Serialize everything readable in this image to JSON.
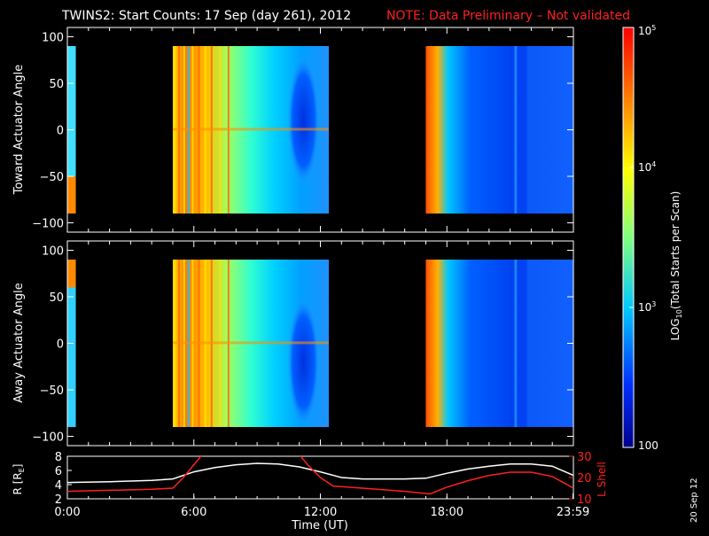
{
  "header": {
    "title": "TWINS2: Start Counts: 17 Sep (day 261), 2012",
    "note": "NOTE: Data Preliminary – Not validated"
  },
  "footer": {
    "date_stamp": "20 Sep 12"
  },
  "colors": {
    "background": "#000000",
    "axes": "#ffffff",
    "note": "#ff2020",
    "lshell": "#ff2020",
    "rtrace": "#ffffff"
  },
  "chart_data": [
    {
      "type": "heatmap",
      "panel": "top",
      "ylabel": "Toward Actuator Angle",
      "ylim": [
        -110,
        110
      ],
      "yticks": [
        100,
        50,
        0,
        -50,
        -100
      ],
      "ytick_labels": [
        "100",
        "50",
        "0",
        "−50",
        "−100"
      ],
      "xlim": [
        0,
        24
      ],
      "data_windows_hours": [
        [
          0.0,
          0.4
        ],
        [
          5.0,
          12.4
        ],
        [
          17.0,
          24.0
        ]
      ],
      "z_scale": "log",
      "zlim": [
        100,
        100000
      ],
      "colormap": [
        "#00008c",
        "#0044ff",
        "#00c8ff",
        "#80ff80",
        "#ffff00",
        "#ff8000",
        "#ff0000"
      ]
    },
    {
      "type": "heatmap",
      "panel": "middle",
      "ylabel": "Away Actuator Angle",
      "ylim": [
        -110,
        110
      ],
      "yticks": [
        100,
        50,
        0,
        -50,
        -100
      ],
      "ytick_labels": [
        "100",
        "50",
        "0",
        "−50",
        "−100"
      ],
      "xlim": [
        0,
        24
      ],
      "data_windows_hours": [
        [
          0.0,
          0.4
        ],
        [
          5.0,
          12.4
        ],
        [
          17.0,
          24.0
        ]
      ],
      "z_scale": "log",
      "zlim": [
        100,
        100000
      ]
    },
    {
      "type": "line",
      "panel": "bottom",
      "xlabel": "Time (UT)",
      "xlim": [
        0,
        24
      ],
      "xticks": [
        0,
        6,
        12,
        18,
        23.98
      ],
      "xtick_labels": [
        "0:00",
        "6:00",
        "12:00",
        "18:00",
        "23:59"
      ],
      "ylabel_left": "R [R",
      "ylabel_left_sub": "E",
      "ylabel_left_close": "]",
      "ylim_left": [
        2,
        8
      ],
      "yticks_left": [
        8,
        6,
        4,
        2
      ],
      "ylabel_right": "L Shell",
      "ylim_right": [
        10,
        30
      ],
      "yticks_right": [
        30,
        20,
        10
      ],
      "series": [
        {
          "axis": "left",
          "color": "#ffffff",
          "x": [
            0,
            2,
            4,
            5,
            6,
            7,
            8,
            9,
            10,
            11,
            12,
            13,
            14,
            15,
            16,
            17,
            18,
            19,
            20,
            21,
            22,
            23,
            24
          ],
          "y": [
            4.3,
            4.4,
            4.6,
            4.8,
            5.8,
            6.4,
            6.8,
            7.0,
            6.9,
            6.5,
            5.8,
            5.0,
            4.8,
            4.8,
            4.8,
            4.9,
            5.6,
            6.2,
            6.6,
            6.9,
            6.9,
            6.6,
            5.3
          ]
        },
        {
          "axis": "right",
          "color": "#ff2020",
          "x": [
            0,
            2,
            4,
            5,
            5.5,
            6.0,
            6.5,
            10.9,
            11.4,
            12.0,
            12.6,
            14,
            16,
            17.2,
            18,
            19,
            20,
            21,
            22,
            23,
            24
          ],
          "y": [
            13.5,
            14.0,
            14.5,
            15.0,
            20.0,
            26.0,
            32.0,
            32.0,
            26.0,
            20.0,
            16.0,
            15.0,
            13.5,
            12.3,
            15.5,
            18.5,
            21.0,
            22.5,
            22.5,
            20.5,
            15.0
          ]
        }
      ]
    },
    {
      "type": "colorbar",
      "label": "LOG",
      "label_sub": "10",
      "label_rest": "(Total Starts per Scan)",
      "scale": "log",
      "zlim": [
        100,
        100000
      ],
      "ticks": [
        100,
        1000,
        10000,
        100000
      ],
      "tick_mantissa": [
        "",
        "10",
        "10",
        "10"
      ],
      "tick_exponent": [
        "",
        "3",
        "4",
        "5"
      ],
      "tick_plain": [
        "100",
        "",
        "",
        ""
      ]
    }
  ]
}
